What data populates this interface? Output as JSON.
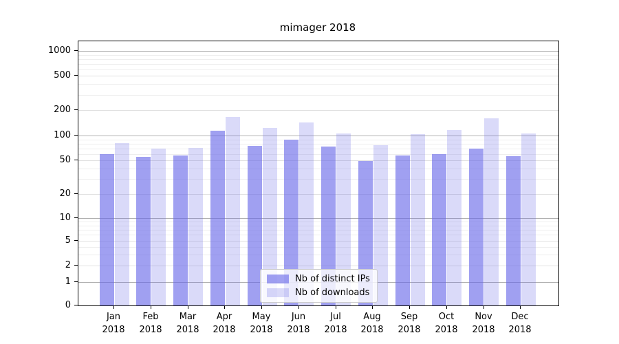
{
  "chart_data": {
    "type": "bar",
    "title": "mimager 2018",
    "categories": [
      "Jan 2018",
      "Feb 2018",
      "Mar 2018",
      "Apr 2018",
      "May 2018",
      "Jun 2018",
      "Jul 2018",
      "Aug 2018",
      "Sep 2018",
      "Oct 2018",
      "Nov 2018",
      "Dec 2018"
    ],
    "series": [
      {
        "name": "Nb of distinct IPs",
        "values": [
          60,
          55,
          57,
          113,
          75,
          90,
          74,
          49,
          57,
          60,
          69,
          56
        ],
        "color": "rgba(102,102,232,0.62)"
      },
      {
        "name": "Nb of downloads",
        "values": [
          81,
          70,
          71,
          166,
          124,
          144,
          105,
          77,
          103,
          116,
          160,
          105
        ],
        "color": "rgba(102,102,232,0.24)"
      }
    ],
    "y_ticks": [
      0,
      1,
      2,
      5,
      10,
      20,
      50,
      100,
      200,
      500,
      1000
    ],
    "y_minor_ticks": [
      3,
      4,
      6,
      7,
      8,
      9,
      30,
      40,
      60,
      70,
      80,
      90,
      300,
      400,
      600,
      700,
      800,
      900
    ],
    "y_scale": "symlog",
    "ylim": [
      0,
      1150
    ],
    "grid": true,
    "legend_position": "lower center",
    "colors": {
      "grid_major": "#b0b0b0",
      "grid_minor": "#eeeeee",
      "axis": "#000000",
      "bar_dark_on_white": "#a6a6f2",
      "bar_light_on_white": "#dcdcf9"
    }
  }
}
